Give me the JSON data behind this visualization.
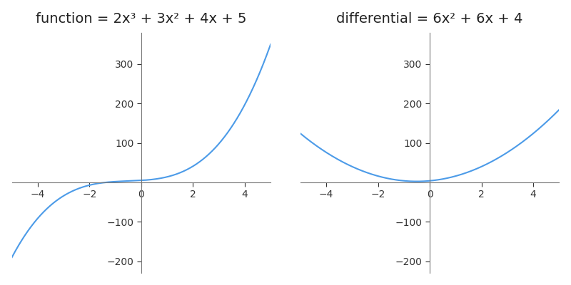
{
  "title_left": "function = 2x³ + 3x² + 4x + 5",
  "title_right": "differential = 6x² + 6x + 4",
  "x_min": -5,
  "x_max": 5,
  "y_min": -230,
  "y_max": 380,
  "line_color": "#4C9BE8",
  "background_color": "#ffffff",
  "spine_color": "#777777",
  "tick_color": "#333333",
  "title_fontsize": 14,
  "tick_fontsize": 10,
  "figsize": [
    8.0,
    4.0
  ],
  "dpi": 100,
  "x_ticks": [
    -4,
    -2,
    0,
    2,
    4
  ],
  "y_ticks": [
    -200,
    -100,
    100,
    200,
    300
  ]
}
